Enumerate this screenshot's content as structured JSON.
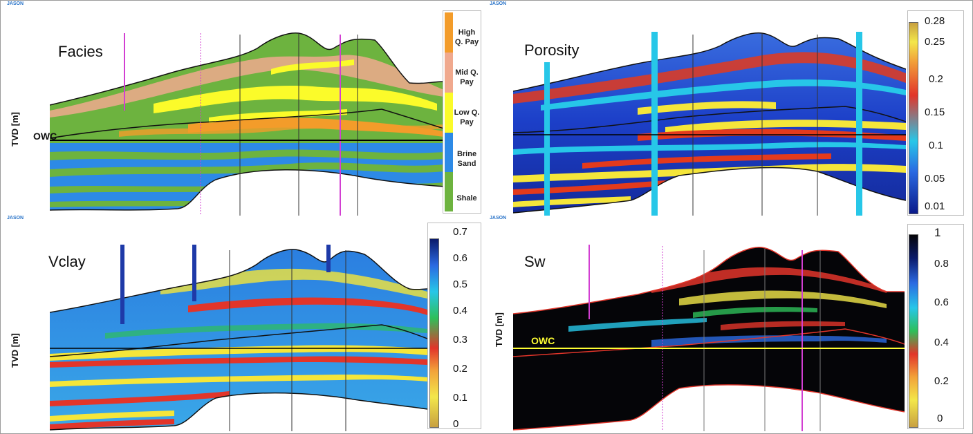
{
  "axis_label": "TVD [m]",
  "brand": "JASON",
  "panels": {
    "facies": {
      "title": "Facies",
      "owc": "OWC",
      "legend": [
        {
          "label": "High Q. Pay",
          "color": "#f39c2a"
        },
        {
          "label": "Mid Q. Pay",
          "color": "#f0a98e"
        },
        {
          "label": "Low Q. Pay",
          "color": "#fbfb2a"
        },
        {
          "label": "Brine Sand",
          "color": "#2d8ae6"
        },
        {
          "label": "Shale",
          "color": "#6db33f"
        }
      ]
    },
    "porosity": {
      "title": "Porosity",
      "ticks": [
        "0.28",
        "0.25",
        "0.2",
        "0.15",
        "0.1",
        "0.05",
        "0.01"
      ]
    },
    "vclay": {
      "title": "Vclay",
      "ticks": [
        "0.7",
        "0.6",
        "0.5",
        "0.4",
        "0.3",
        "0.2",
        "0.1",
        "0"
      ]
    },
    "sw": {
      "title": "Sw",
      "owc": "OWC",
      "ticks": [
        "1",
        "0.8",
        "0.6",
        "0.4",
        "0.2",
        "0"
      ]
    }
  }
}
